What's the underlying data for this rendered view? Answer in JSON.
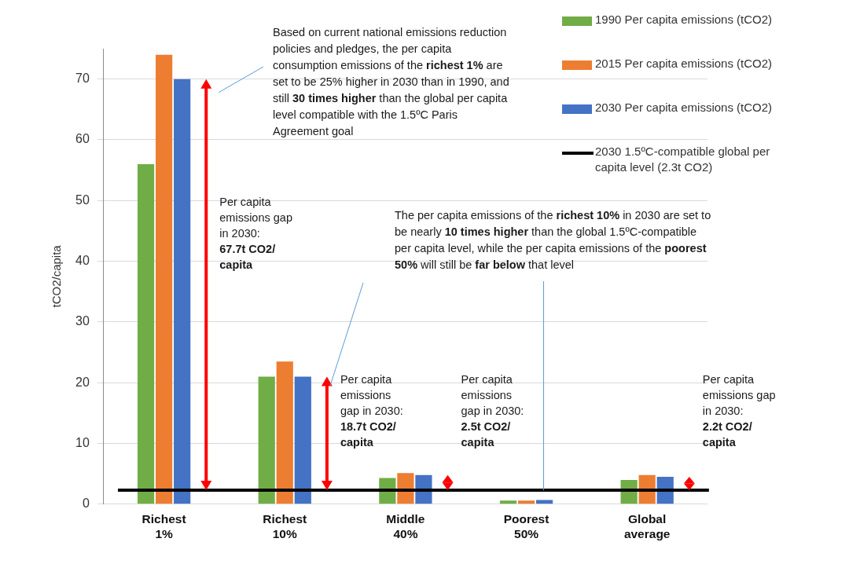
{
  "chart_data": {
    "type": "bar",
    "y_label": "tCO2/capita",
    "categories": [
      "Richest 1%",
      "Richest 10%",
      "Middle 40%",
      "Poorest 50%",
      "Global average"
    ],
    "series": [
      {
        "name": "1990 Per capita emissions (tCO2)",
        "color": "#70ad47",
        "values": [
          56,
          21,
          4.3,
          0.6,
          4.0
        ]
      },
      {
        "name": "2015 Per capita emissions (tCO2)",
        "color": "#ed7d31",
        "values": [
          74,
          23.5,
          5.1,
          0.6,
          4.8
        ]
      },
      {
        "name": "2030 Per capita emissions (tCO2)",
        "color": "#4472c4",
        "values": [
          70,
          21,
          4.8,
          0.7,
          4.5
        ]
      }
    ],
    "reference_line": {
      "name": "2030 1.5ºC-compatible global per capita level (2.3t CO2)",
      "value": 2.3,
      "color": "#000000"
    },
    "gaps": [
      {
        "category": "Richest 1%",
        "text": "Per capita emissions gap in 2030:",
        "value": 67.7,
        "label": "67.7t CO2/ capita",
        "color": "#ff0000"
      },
      {
        "category": "Richest 10%",
        "text": "Per capita emissions gap in 2030:",
        "value": 18.7,
        "label": "18.7t CO2/ capita",
        "color": "#ff0000"
      },
      {
        "category": "Middle 40%",
        "text": "Per capita emissions gap in 2030:",
        "value": 2.5,
        "label": "2.5t CO2/ capita",
        "color": "#ff0000"
      },
      {
        "category": "Global average",
        "text": "Per capita emissions gap in 2030:",
        "value": 2.2,
        "label": "2.2t CO2/ capita",
        "color": "#ff0000"
      }
    ],
    "annotations": [
      {
        "text": "Based on current national emissions reduction policies and pledges, the per capita consumption emissions of the richest 1% are set to be 25% higher in 2030 than in 1990, and still 30 times higher than the global per capita level compatible with the 1.5ºC Paris Agreement goal",
        "bold": [
          "richest 1%",
          "30 times higher"
        ],
        "points_to": [
          "Richest 1%"
        ]
      },
      {
        "text": "The per capita emissions of the richest 10% in 2030 are set to be nearly 10 times higher than the global 1.5ºC-compatible per capita level, while the per capita emissions of the poorest 50% will still be far below that level",
        "bold": [
          "richest 10%",
          "10 times higher",
          "poorest 50%",
          "far below"
        ],
        "points_to": [
          "Richest 10%",
          "Poorest 50%"
        ]
      }
    ],
    "ylim": [
      0,
      75
    ],
    "yticks": [
      0,
      10,
      20,
      30,
      40,
      50,
      60,
      70
    ],
    "grid": true,
    "legend": "top-right"
  }
}
